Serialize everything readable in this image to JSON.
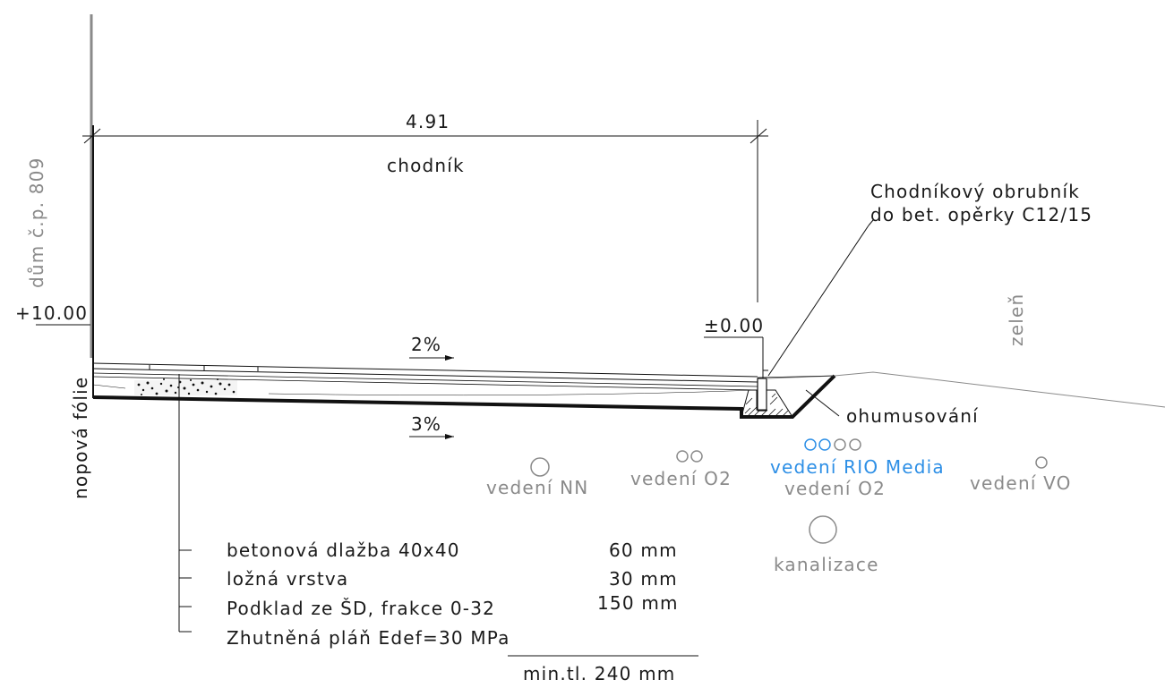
{
  "colors": {
    "line": "#111111",
    "gray": "#8a8a8a",
    "blue": "#2d8fe6"
  },
  "dimension": {
    "width": "4.91"
  },
  "labels": {
    "sidewalk": "chodník",
    "house": "dům č.p. 809",
    "membrane": "nopová fólie",
    "greenery": "zeleň",
    "topsoil": "ohumusování",
    "curb_line1": "Chodníkový obrubník",
    "curb_line2": "do bet. opěrky C12/15"
  },
  "levels": {
    "left": "+10.00",
    "right": "±0.00"
  },
  "slopes": {
    "top": "2%",
    "bottom": "3%"
  },
  "utilities": {
    "nn": "vedení NN",
    "o2_a": "vedení O2",
    "rio": "vedení RIO Media",
    "o2_b": "vedení O2",
    "vo": "vedení VO",
    "sewer": "kanalizace"
  },
  "layers": [
    {
      "name": "betonová dlažba 40x40",
      "thickness": "60 mm"
    },
    {
      "name": "ložná vrstva",
      "thickness": "30 mm"
    },
    {
      "name": "Podklad ze ŠD, frakce 0-32",
      "thickness": "150 mm"
    },
    {
      "name": "Zhutněná pláň Edef=30 MPa",
      "thickness": ""
    }
  ],
  "total": "min.tl. 240 mm"
}
